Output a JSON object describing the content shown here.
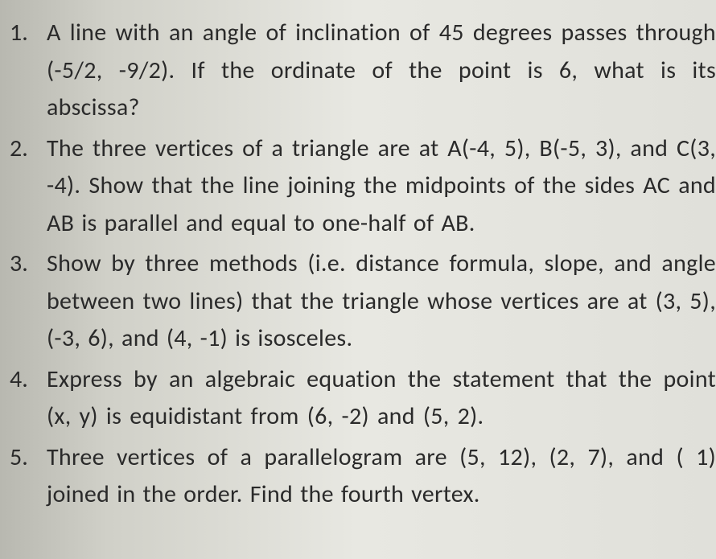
{
  "document": {
    "type": "math-problem-set",
    "background_color": "#e0e0da",
    "text_color": "#2a2a2a",
    "font_family": "Calibri, Arial, sans-serif",
    "font_size_pt": 22,
    "line_height": 1.55,
    "questions": [
      {
        "number": "1.",
        "text": "A line with an angle of inclination of 45 degrees passes through (-5/2, -9/2). If the ordinate of the point is 6, what is its abscissa?"
      },
      {
        "number": "2.",
        "text": "The three vertices of a triangle are at A(-4, 5), B(-5, 3), and C(3, -4). Show that the line joining the midpoints of the sides AC and AB is parallel and equal to one-half of AB."
      },
      {
        "number": "3.",
        "text": "Show by three methods (i.e. distance formula, slope, and angle between two lines) that the triangle whose vertices are at (3, 5), (-3, 6), and (4, -1) is isosceles."
      },
      {
        "number": "4.",
        "text": "Express by an algebraic equation the statement that the point (x, y) is equidistant from (6, -2) and (5, 2)."
      },
      {
        "number": "5.",
        "text": "Three vertices of a parallelogram are (5, 12), (2, 7), and ( 1) joined in the order. Find the fourth vertex."
      }
    ]
  }
}
